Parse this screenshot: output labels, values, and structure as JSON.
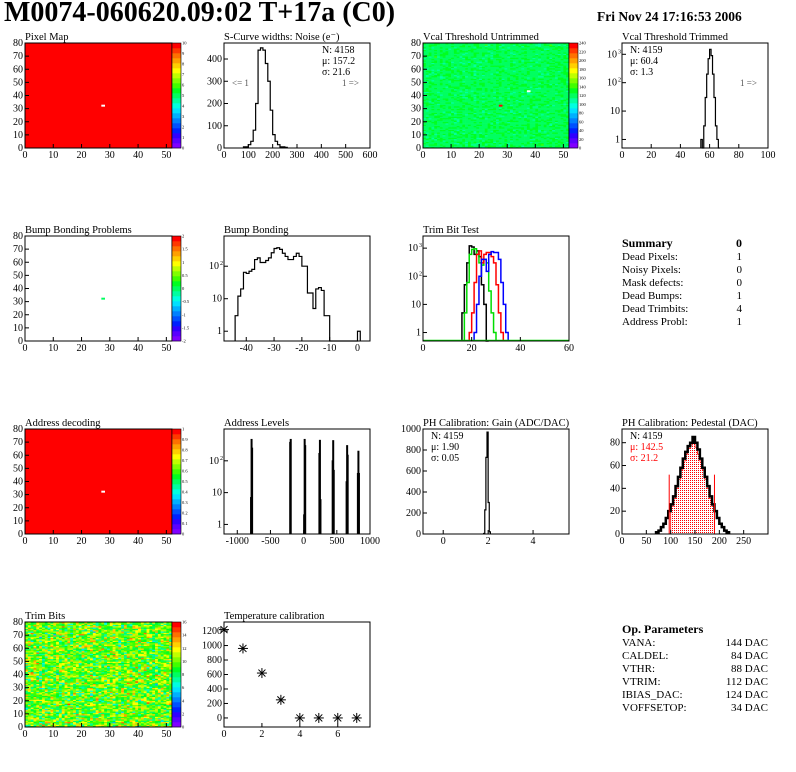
{
  "header": {
    "title": "M0074-060620.09:02 T+17a (C0)",
    "date": "Fri Nov 24 17:16:53 2006"
  },
  "summary": {
    "title": "Summary",
    "value": "0",
    "rows": [
      {
        "label": "Dead Pixels:",
        "value": "1"
      },
      {
        "label": "Noisy Pixels:",
        "value": "0"
      },
      {
        "label": "Mask defects:",
        "value": "0"
      },
      {
        "label": "Dead Bumps:",
        "value": "1"
      },
      {
        "label": "Dead Trimbits:",
        "value": "4"
      },
      {
        "label": "Address Probl:",
        "value": "1"
      }
    ]
  },
  "op_parameters": {
    "title": "Op. Parameters",
    "rows": [
      {
        "label": "VANA:",
        "value": "144 DAC"
      },
      {
        "label": "CALDEL:",
        "value": "84 DAC"
      },
      {
        "label": "VTHR:",
        "value": "88 DAC"
      },
      {
        "label": "VTRIM:",
        "value": "112 DAC"
      },
      {
        "label": "IBIAS_DAC:",
        "value": "124 DAC"
      },
      {
        "label": "VOFFSETOP:",
        "value": "34 DAC"
      }
    ]
  },
  "colors": {
    "palette": [
      "#8000ff",
      "#5a00ff",
      "#3000ff",
      "#0020ff",
      "#0050ff",
      "#0080ff",
      "#00b0ff",
      "#00e0ff",
      "#00ffe0",
      "#00ffa0",
      "#00ff60",
      "#00ff20",
      "#40ff00",
      "#80ff00",
      "#c0ff00",
      "#ffff00",
      "#ffd000",
      "#ffa000",
      "#ff7000",
      "#ff3800",
      "#ff0000"
    ],
    "trim_series": [
      "#000000",
      "#00dd00",
      "#ff0000",
      "#0000ff"
    ],
    "pedestal_fill": "#ff0000"
  },
  "chart_data": [
    {
      "id": "pixel_map",
      "type": "heatmap",
      "title": "Pixel Map",
      "xlim": [
        0,
        52
      ],
      "ylim": [
        0,
        80
      ],
      "zlim": [
        0,
        10
      ],
      "x_ticks": [
        0,
        10,
        20,
        30,
        40,
        50
      ],
      "y_ticks": [
        0,
        10,
        20,
        30,
        40,
        50,
        60,
        70,
        80
      ],
      "z_labels": [
        "0",
        "1",
        "2",
        "3",
        "4",
        "5",
        "6",
        "7",
        "8",
        "9",
        "10"
      ],
      "fill_value": 10,
      "special_pixels": [
        {
          "col": 27,
          "row": 32,
          "value": 0
        }
      ]
    },
    {
      "id": "scurve",
      "type": "histogram",
      "title": "S-Curve widths: Noise (e⁻)",
      "xlim": [
        0,
        600
      ],
      "ylim": [
        0,
        472
      ],
      "log_y": false,
      "x_ticks": [
        0,
        100,
        200,
        300,
        400,
        500,
        600
      ],
      "y_ticks": [
        0,
        100,
        200,
        300,
        400
      ],
      "series": [
        {
          "x_start": 80,
          "bin_width": 10,
          "values": [
            5,
            5,
            15,
            30,
            80,
            200,
            440,
            450,
            440,
            380,
            300,
            170,
            60,
            30,
            15,
            5,
            5,
            3
          ]
        }
      ],
      "stats": {
        "position": "top-right",
        "lines": [
          {
            "text": "N: 4158"
          },
          {
            "text": "μ: 157.2"
          },
          {
            "text": "σ: 21.6"
          }
        ]
      },
      "underflow_label": "<= 1",
      "overflow_label": "1 =>"
    },
    {
      "id": "vcal_untrimmed",
      "type": "heatmap",
      "title": "Vcal Threshold Untrimmed",
      "xlim": [
        0,
        52
      ],
      "ylim": [
        0,
        80
      ],
      "zlim": [
        0,
        250
      ],
      "x_ticks": [
        0,
        10,
        20,
        30,
        40,
        50
      ],
      "y_ticks": [
        0,
        10,
        20,
        30,
        40,
        50,
        60,
        70,
        80
      ],
      "z_labels": [
        "0",
        "20",
        "40",
        "60",
        "80",
        "100",
        "120",
        "140",
        "160",
        "180",
        "200",
        "220",
        "240"
      ],
      "typical_value": 128,
      "spread": 10,
      "special_pixels": [
        {
          "col": 27,
          "row": 32,
          "value": 250
        },
        {
          "col": 37,
          "row": 43,
          "value": 0
        }
      ]
    },
    {
      "id": "vcal_trimmed",
      "type": "histogram",
      "title": "Vcal Threshold Trimmed",
      "xlim": [
        0,
        100
      ],
      "ylim": [
        0.5,
        2500
      ],
      "log_y": true,
      "x_ticks": [
        0,
        20,
        40,
        60,
        80,
        100
      ],
      "y_ticks": [
        1,
        10,
        100,
        1000
      ],
      "series": [
        {
          "x_start": 54,
          "bin_width": 1,
          "values": [
            1,
            0,
            3,
            30,
            200,
            700,
            1500,
            900,
            200,
            30,
            3,
            1,
            0
          ]
        }
      ],
      "stats": {
        "position": "top-left",
        "lines": [
          {
            "text": "N: 4159"
          },
          {
            "text": "μ: 60.4"
          },
          {
            "text": "σ:  1.3"
          }
        ]
      },
      "overflow_label": "1 =>"
    },
    {
      "id": "bump_problems",
      "type": "heatmap",
      "title": "Bump Bonding Problems",
      "xlim": [
        0,
        52
      ],
      "ylim": [
        0,
        80
      ],
      "zlim": [
        -2,
        2
      ],
      "x_ticks": [
        0,
        10,
        20,
        30,
        40,
        50
      ],
      "y_ticks": [
        0,
        10,
        20,
        30,
        40,
        50,
        60,
        70,
        80
      ],
      "z_labels": [
        "-2",
        "-1.5",
        "-1",
        "-0.5",
        "0",
        "0.5",
        "1",
        "1.5",
        "2"
      ],
      "special_pixels": [
        {
          "col": 27,
          "row": 32,
          "value": 0
        }
      ]
    },
    {
      "id": "bump_bonding",
      "type": "histogram",
      "title": "Bump Bonding",
      "xlim": [
        -48,
        4.5
      ],
      "ylim": [
        0.5,
        850
      ],
      "log_y": true,
      "x_ticks": [
        -40,
        -30,
        -20,
        -10,
        0
      ],
      "y_ticks": [
        1,
        10,
        100
      ],
      "series": [
        {
          "x_start": -44,
          "bin_width": 1,
          "values": [
            3,
            12,
            20,
            65,
            60,
            70,
            80,
            160,
            180,
            130,
            130,
            150,
            180,
            260,
            350,
            370,
            330,
            250,
            200,
            160,
            160,
            200,
            250,
            200,
            100,
            100,
            15,
            15,
            5,
            20,
            22,
            18,
            3,
            3,
            0,
            0,
            0,
            0,
            0,
            0,
            0,
            0,
            0,
            0,
            1
          ]
        }
      ]
    },
    {
      "id": "trim_bit_test",
      "type": "histogram",
      "title": "Trim Bit Test",
      "xlim": [
        0,
        60
      ],
      "ylim": [
        0.5,
        2700
      ],
      "log_y": true,
      "x_ticks": [
        0,
        20,
        40,
        60
      ],
      "y_ticks": [
        1,
        10,
        100,
        1000
      ],
      "series": [
        {
          "x_start": 16,
          "bin_width": 1,
          "values": [
            5,
            50,
            300,
            1200,
            1100,
            600,
            800,
            500,
            50,
            10,
            0
          ]
        },
        {
          "x_start": 17,
          "bin_width": 1,
          "values": [
            5,
            60,
            600,
            900,
            950,
            600,
            300,
            250,
            400,
            300,
            30,
            5,
            1
          ]
        },
        {
          "x_start": 19,
          "bin_width": 1,
          "values": [
            1,
            5,
            60,
            600,
            800,
            300,
            600,
            700,
            700,
            500,
            300,
            50,
            5,
            1
          ]
        },
        {
          "x_start": 21,
          "bin_width": 1,
          "values": [
            1,
            10,
            100,
            400,
            400,
            150,
            600,
            750,
            700,
            700,
            400,
            60,
            10,
            1
          ]
        }
      ]
    },
    {
      "id": "address_decoding",
      "type": "heatmap",
      "title": "Address decoding",
      "xlim": [
        0,
        52
      ],
      "ylim": [
        0,
        80
      ],
      "zlim": [
        0,
        1
      ],
      "x_ticks": [
        0,
        10,
        20,
        30,
        40,
        50
      ],
      "y_ticks": [
        0,
        10,
        20,
        30,
        40,
        50,
        60,
        70,
        80
      ],
      "z_labels": [
        "0",
        "0.1",
        "0.2",
        "0.3",
        "0.4",
        "0.5",
        "0.6",
        "0.7",
        "0.8",
        "0.9",
        "1"
      ],
      "fill_value": 1,
      "special_pixels": [
        {
          "col": 27,
          "row": 32,
          "value": 0
        }
      ]
    },
    {
      "id": "address_levels",
      "type": "spikes",
      "title": "Address Levels",
      "xlim": [
        -1200,
        1000
      ],
      "ylim": [
        0.5,
        1000
      ],
      "log_y": true,
      "x_ticks": [
        -1000,
        -500,
        0,
        500,
        1000
      ],
      "y_ticks": [
        1,
        10,
        100
      ],
      "bin_width": 8,
      "peaks": [
        [
          -800,
          7
        ],
        [
          -792,
          470
        ],
        [
          -784,
          250
        ],
        [
          -210,
          380
        ],
        [
          -202,
          470
        ],
        [
          0,
          2
        ],
        [
          8,
          470
        ],
        [
          16,
          300
        ],
        [
          230,
          170
        ],
        [
          238,
          440
        ],
        [
          246,
          6
        ],
        [
          430,
          100
        ],
        [
          438,
          430
        ],
        [
          446,
          50
        ],
        [
          640,
          22
        ],
        [
          648,
          300
        ],
        [
          656,
          150
        ],
        [
          810,
          40
        ],
        [
          818,
          200
        ],
        [
          826,
          40
        ]
      ]
    },
    {
      "id": "ph_gain",
      "type": "histogram",
      "title": "PH Calibration: Gain (ADC/DAC)",
      "xlim": [
        -0.9,
        5.6
      ],
      "ylim": [
        0,
        1000
      ],
      "log_y": false,
      "x_ticks": [
        0,
        2,
        4
      ],
      "y_ticks": [
        0,
        200,
        400,
        600,
        800,
        1000
      ],
      "series": [
        {
          "x_start": 1.8,
          "bin_width": 0.05,
          "values": [
            5,
            230,
            730,
            970,
            300,
            20
          ]
        }
      ],
      "stats": {
        "position": "top-left",
        "lines": [
          {
            "text": "N: 4159"
          },
          {
            "text": "μ: 1.90"
          },
          {
            "text": "σ: 0.05"
          }
        ]
      }
    },
    {
      "id": "ph_pedestal",
      "type": "histogram",
      "title": "PH Calibration: Pedestal (DAC)",
      "xlim": [
        0,
        300
      ],
      "ylim": [
        0,
        92
      ],
      "log_y": false,
      "x_ticks": [
        0,
        50,
        100,
        150,
        200,
        250
      ],
      "y_ticks": [
        0,
        20,
        40,
        60,
        80
      ],
      "series": [
        {
          "x_start": 100,
          "bin_width": 5,
          "values": [
            24,
            31,
            40,
            48,
            56,
            64,
            70,
            75,
            78,
            80,
            76,
            70,
            64,
            56,
            48,
            40,
            31,
            24
          ],
          "filled": true
        },
        {
          "x_start": 70,
          "bin_width": 5,
          "values": [
            1.5,
            3,
            6,
            9,
            14,
            20,
            26,
            33,
            42,
            50,
            58,
            66,
            72,
            77,
            80,
            85,
            80,
            74,
            66,
            58,
            50,
            42,
            33,
            26,
            20,
            14,
            9,
            6,
            3,
            1.5
          ],
          "thick": true
        }
      ],
      "markers": [
        {
          "x": 97,
          "y": 52
        },
        {
          "x": 190,
          "y": 52
        }
      ],
      "stats": {
        "position": "top-left",
        "lines": [
          {
            "text": "N: 4159"
          },
          {
            "text": "μ: 142.5",
            "color": "#ff0000"
          },
          {
            "text": "σ: 21.2",
            "color": "#ff0000"
          }
        ]
      }
    },
    {
      "id": "trim_bits",
      "type": "heatmap",
      "title": "Trim Bits",
      "xlim": [
        0,
        52
      ],
      "ylim": [
        0,
        80
      ],
      "zlim": [
        0,
        16
      ],
      "x_ticks": [
        0,
        10,
        20,
        30,
        40,
        50
      ],
      "y_ticks": [
        0,
        10,
        20,
        30,
        40,
        50,
        60,
        70,
        80
      ],
      "z_labels": [
        "0",
        "2",
        "4",
        "6",
        "8",
        "10",
        "12",
        "14",
        "16"
      ],
      "typical_value": 10,
      "spread": 3
    },
    {
      "id": "temperature",
      "type": "scatter",
      "title": "Temperature calibration",
      "xlim": [
        0,
        7.7
      ],
      "ylim": [
        -125,
        1325
      ],
      "x_ticks": [
        0,
        2,
        4,
        6
      ],
      "y_ticks": [
        0,
        200,
        400,
        600,
        800,
        1000,
        1200
      ],
      "x": [
        0,
        1,
        2,
        3,
        4,
        5,
        6,
        7
      ],
      "y": [
        1220,
        960,
        620,
        250,
        0,
        0,
        0,
        0
      ]
    }
  ]
}
